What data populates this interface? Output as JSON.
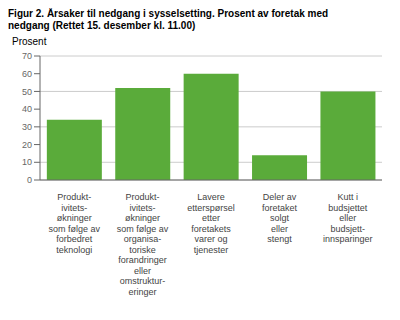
{
  "chart_data": {
    "type": "bar",
    "title": "Figur 2. Årsaker til nedgang i sysselsetting. Prosent av foretak med\nnedgang (Rettet 15. desember kl. 11.00)",
    "ylabel": "Prosent",
    "categories": [
      "Produkt-\nivitets-\nøkninger\nsom følge av\nforbedret\nteknologi",
      "Produkt-\nivitets-\nøkninger\nsom følge av\norganisa-\ntoriske\nforandringer\neller\nomstruktur-\neringer",
      "Lavere\netterspørsel\netter\nforetakets\nvarer og\ntjenester",
      "Deler av\nforetaket\nsolgt\neller\nstengt",
      "Kutt i\nbudsjettet\neller\nbudsjett-\ninnsparinger"
    ],
    "values": [
      34,
      52,
      60,
      14,
      50
    ],
    "color": "#5aab3a",
    "ylim": [
      0,
      70
    ],
    "yticks": [
      0,
      10,
      20,
      30,
      40,
      50,
      60,
      70
    ],
    "grid": true
  }
}
